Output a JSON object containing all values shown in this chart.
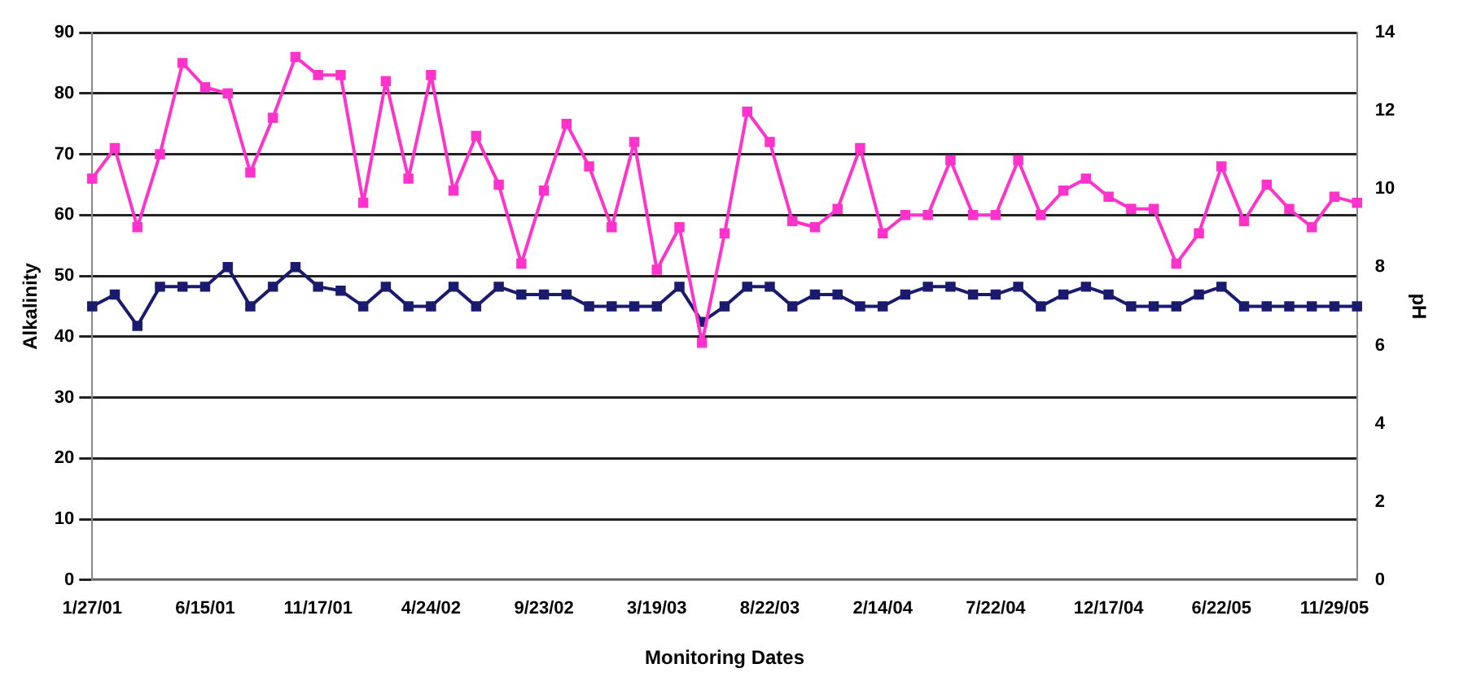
{
  "chart_data": {
    "type": "line",
    "xlabel": "Monitoring Dates",
    "ylabel": "Alkalinity",
    "y2label": "pH",
    "categories": [
      "1/27/01",
      null,
      null,
      null,
      null,
      "6/15/01",
      null,
      null,
      null,
      null,
      "11/17/01",
      null,
      null,
      null,
      null,
      "4/24/02",
      null,
      null,
      null,
      null,
      "9/23/02",
      null,
      null,
      null,
      null,
      "3/19/03",
      null,
      null,
      null,
      null,
      "8/22/03",
      null,
      null,
      null,
      null,
      "2/14/04",
      null,
      null,
      null,
      null,
      "7/22/04",
      null,
      null,
      null,
      null,
      "12/17/04",
      null,
      null,
      null,
      null,
      "6/22/05",
      null,
      null,
      null,
      null,
      "11/29/05",
      null
    ],
    "series": [
      {
        "color": "#ff33cc",
        "values": [
          66,
          71,
          58,
          70,
          85,
          81,
          80,
          67,
          76,
          86,
          83,
          83,
          62,
          82,
          66,
          83,
          64,
          73,
          65,
          52,
          64,
          75,
          68,
          58,
          72,
          51,
          58,
          39,
          57,
          77,
          72,
          59,
          58,
          61,
          71,
          57,
          60,
          60,
          69,
          60,
          60,
          69,
          60,
          64,
          66,
          63,
          61,
          61,
          52,
          57,
          68,
          59,
          65,
          61,
          58,
          63,
          62
        ]
      },
      {
        "color": "#1a1a6e",
        "axis": "y2",
        "values": [
          7.0,
          7.3,
          6.5,
          7.5,
          7.5,
          7.5,
          8.0,
          7.0,
          7.5,
          8.0,
          7.5,
          7.4,
          7.0,
          7.5,
          7.0,
          7.0,
          7.5,
          7.0,
          7.5,
          7.3,
          7.3,
          7.3,
          7.0,
          7.0,
          7.0,
          7.0,
          7.5,
          6.6,
          7.0,
          7.5,
          7.5,
          7.0,
          7.3,
          7.3,
          7.0,
          7.0,
          7.3,
          7.5,
          7.5,
          7.3,
          7.3,
          7.5,
          7.0,
          7.3,
          7.5,
          7.3,
          7.0,
          7.0,
          7.0,
          7.3,
          7.5,
          7.0,
          7.0,
          7.0,
          7.0,
          7.0,
          7.0
        ]
      }
    ],
    "ylim": [
      0,
      90
    ],
    "yticks": [
      0,
      10,
      20,
      30,
      40,
      50,
      60,
      70,
      80,
      90
    ],
    "y2lim": [
      0,
      14
    ],
    "y2ticks": [
      0,
      2,
      4,
      6,
      8,
      10,
      12,
      14
    ],
    "grid": "y",
    "legend": false,
    "marker": "square",
    "line_style": "solid"
  }
}
